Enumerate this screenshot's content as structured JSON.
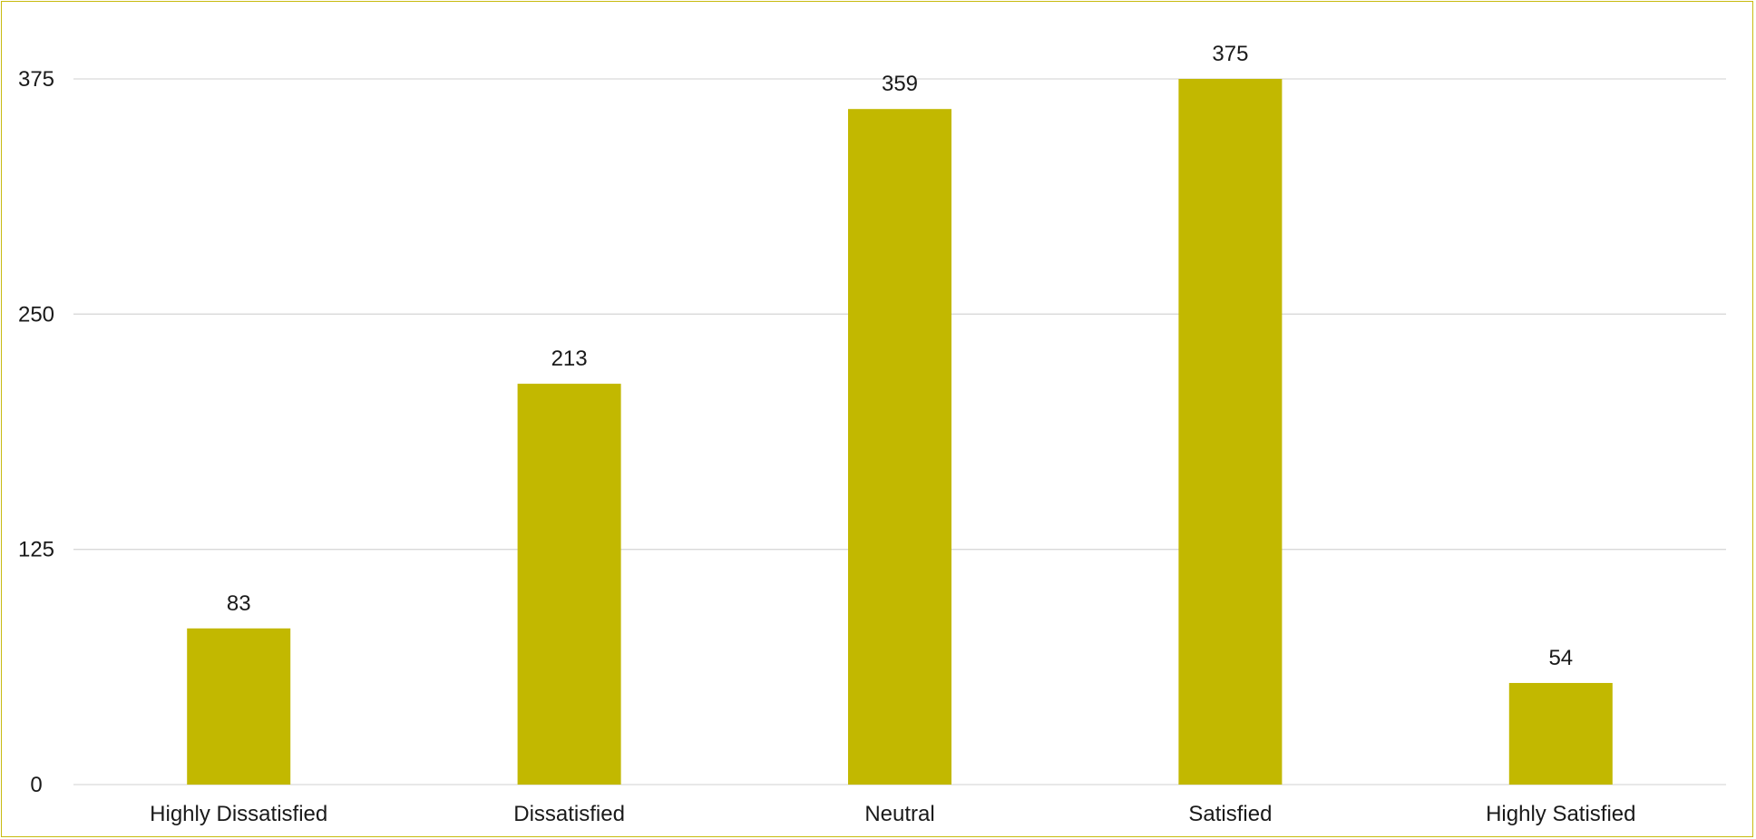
{
  "chart_data": {
    "type": "bar",
    "categories": [
      "Highly Dissatisfied",
      "Dissatisfied",
      "Neutral",
      "Satisfied",
      "Highly Satisfied"
    ],
    "values": [
      83,
      213,
      359,
      375,
      54
    ],
    "data_labels": [
      "83",
      "213",
      "359",
      "375",
      "54"
    ],
    "title": "",
    "xlabel": "",
    "ylabel": "",
    "ylim": [
      0,
      375
    ],
    "yticks": [
      0,
      125,
      250,
      375
    ],
    "ytick_labels": [
      "0",
      "125",
      "250",
      "375"
    ],
    "grid": true,
    "legend": "none",
    "bar_color": "#c2b800",
    "grid_color": "#d9d9d9",
    "border_color": "#c8bb10"
  }
}
